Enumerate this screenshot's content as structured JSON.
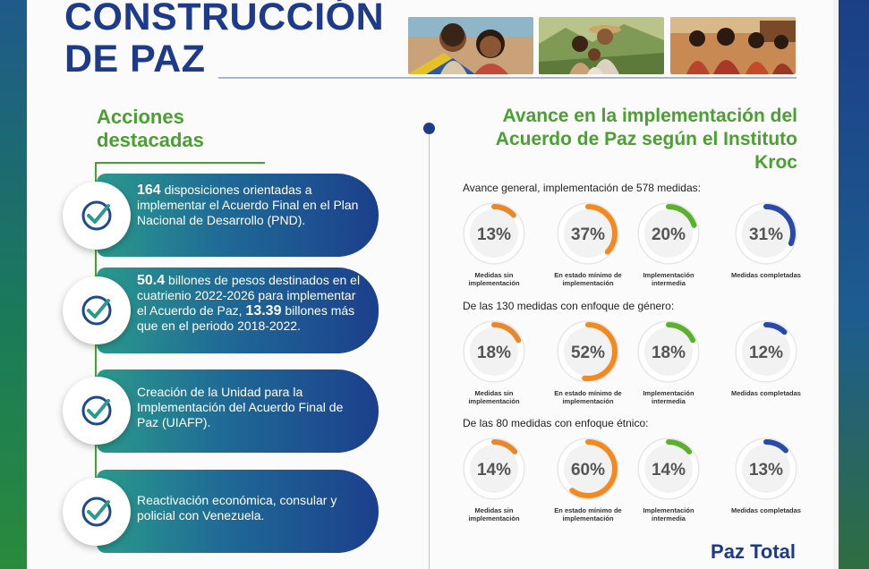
{
  "title": {
    "line1": "CONSTRUCCIÓN",
    "line2": "DE PAZ"
  },
  "left": {
    "heading_line1": "Acciones",
    "heading_line2": "destacadas",
    "items": [
      {
        "strong": "164",
        "text": " disposiciones orientadas a implementar el Acuerdo Final en el Plan Nacional de Desarrollo (PND).",
        "strong2": "",
        "text2": ""
      },
      {
        "strong": "50.4",
        "text": "  billones de pesos destinados en el cuatrienio 2022-2026 para implementar el Acuerdo de Paz, ",
        "strong2": "13.39",
        "text2": " billones más que en el periodo 2018-2022."
      },
      {
        "strong": "",
        "text": "Creación de la Unidad para la Implementación del Acuerdo Final de Paz (UIAFP).",
        "strong2": "",
        "text2": ""
      },
      {
        "strong": "",
        "text": "Reactivación económica, consular y policial con Venezuela.",
        "strong2": "",
        "text2": ""
      }
    ]
  },
  "right": {
    "heading": "Avance en la implementación del Acuerdo de Paz según el Instituto Kroc",
    "groups": [
      {
        "label": "Avance general, implementación de 578 medidas:",
        "gauges": [
          {
            "value": 13,
            "text": "13%",
            "caption": "Medidas sin implementación",
            "color": "#e8872c"
          },
          {
            "value": 37,
            "text": "37%",
            "caption": "En estado mínimo de implementación",
            "color": "#f28a1f"
          },
          {
            "value": 20,
            "text": "20%",
            "caption": "Implementación intermedia",
            "color": "#5bb030"
          },
          {
            "value": 31,
            "text": "31%",
            "caption": "Medidas completadas",
            "color": "#2a4aa8"
          }
        ]
      },
      {
        "label": "De las 130 medidas con enfoque de género:",
        "gauges": [
          {
            "value": 18,
            "text": "18%",
            "caption": "Medidas sin implementación",
            "color": "#e8872c"
          },
          {
            "value": 52,
            "text": "52%",
            "caption": "En estado mínimo de implementación",
            "color": "#f28a1f"
          },
          {
            "value": 18,
            "text": "18%",
            "caption": "Implementación intermedia",
            "color": "#5bb030"
          },
          {
            "value": 12,
            "text": "12%",
            "caption": "Medidas completadas",
            "color": "#2a4aa8"
          }
        ]
      },
      {
        "label": "De las 80 medidas con enfoque étnico:",
        "gauges": [
          {
            "value": 14,
            "text": "14%",
            "caption": "Medidas sin implementación",
            "color": "#e8872c"
          },
          {
            "value": 60,
            "text": "60%",
            "caption": "En estado mínimo de implementación",
            "color": "#f28a1f"
          },
          {
            "value": 14,
            "text": "14%",
            "caption": "Implementación intermedia",
            "color": "#5bb030"
          },
          {
            "value": 13,
            "text": "13%",
            "caption": "Medidas completadas",
            "color": "#2a4aa8"
          }
        ]
      }
    ]
  },
  "footer": "Paz Total",
  "icons": {
    "check": "check-circle-icon"
  }
}
